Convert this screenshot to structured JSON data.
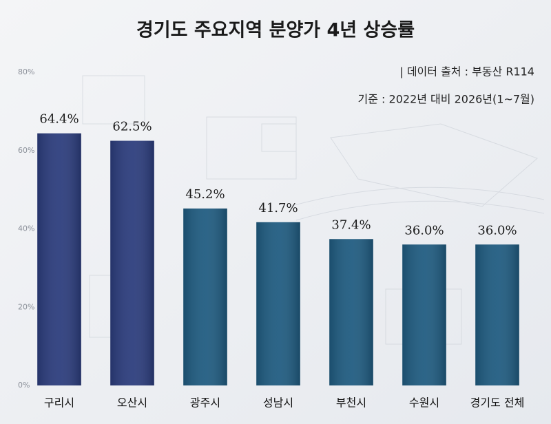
{
  "chart_data": {
    "type": "bar",
    "title": "경기도 주요지역 분양가 4년 상승률",
    "annotations": [
      "| 데이터 출처 : 부동산 R114",
      "기준 : 2022년 대비 2026년(1~7월)"
    ],
    "categories": [
      "구리시",
      "오산시",
      "광주시",
      "성남시",
      "부천시",
      "수원시",
      "경기도 전체"
    ],
    "values": [
      64.4,
      62.5,
      45.2,
      41.7,
      37.4,
      36.0,
      36.0
    ],
    "value_labels": [
      "64.4%",
      "62.5%",
      "45.2%",
      "41.7%",
      "37.4%",
      "36.0%",
      "36.0%"
    ],
    "colors": [
      "#2b3c7c",
      "#2b3c7c",
      "#1f5b80",
      "#1f5b80",
      "#1f5b80",
      "#1f5b80",
      "#1f5b80"
    ],
    "ylim": [
      0,
      80
    ],
    "yticks": [
      {
        "value": 0,
        "label": "0%"
      },
      {
        "value": 20,
        "label": "20%"
      },
      {
        "value": 40,
        "label": "40%"
      },
      {
        "value": 60,
        "label": "60%"
      },
      {
        "value": 80,
        "label": "80%"
      }
    ],
    "grid": false
  }
}
